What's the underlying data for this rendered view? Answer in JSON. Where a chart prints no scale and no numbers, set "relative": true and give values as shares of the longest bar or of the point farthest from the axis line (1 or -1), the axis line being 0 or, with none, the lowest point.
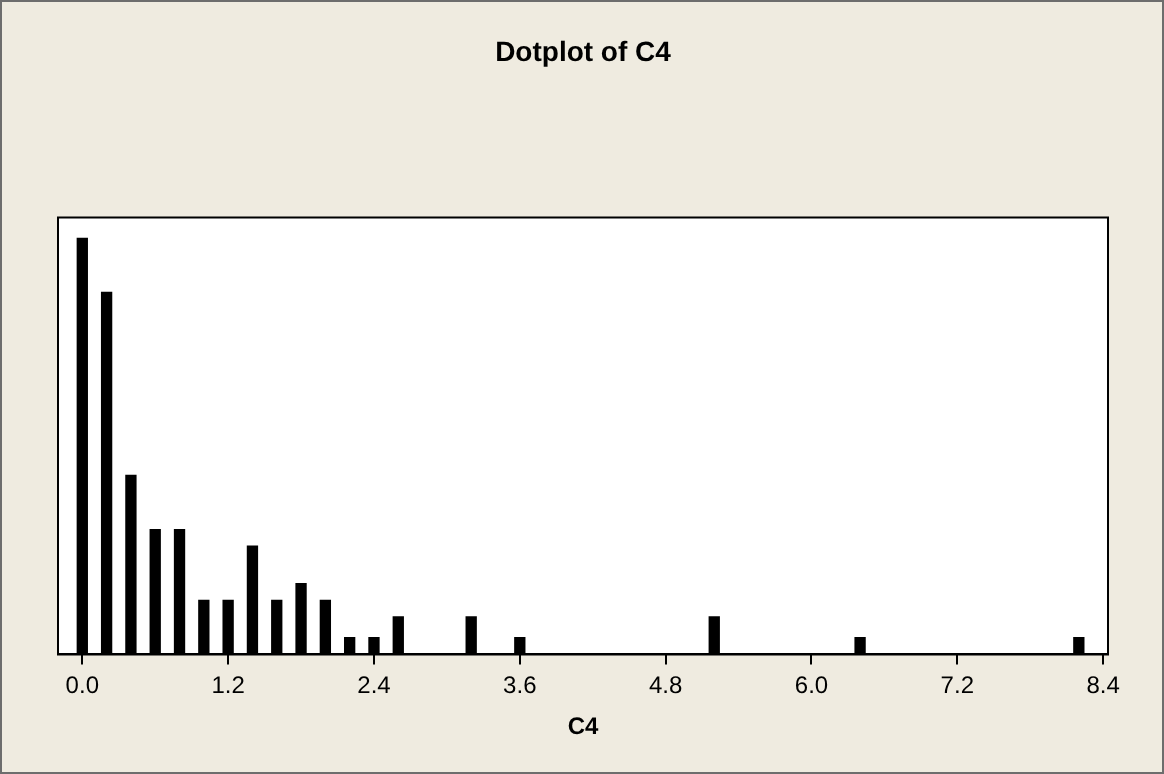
{
  "chart_data": {
    "type": "bar",
    "title": "Dotplot of C4",
    "xlabel": "C4",
    "relative": true,
    "grid": false,
    "legend": false,
    "tick_labels": "x",
    "xlim": [
      -0.2,
      8.44
    ],
    "xticks": [
      {
        "value": 0,
        "label": "0.0"
      },
      1.2,
      2.4,
      3.6,
      4.8,
      {
        "value": 6,
        "label": "6.0"
      },
      7.2,
      8.4
    ],
    "x": [
      0,
      0.2,
      0.4,
      0.6,
      0.8,
      1,
      1.2,
      1.4,
      1.6,
      1.8,
      2,
      2.2,
      2.4,
      2.6,
      3.2,
      3.6,
      5.2,
      6.4,
      8.2
    ],
    "values": [
      1,
      0.87,
      0.43,
      0.3,
      0.3,
      0.13,
      0.13,
      0.26,
      0.13,
      0.17,
      0.13,
      0.04,
      0.04,
      0.09,
      0.09,
      0.04,
      0.09,
      0.04,
      0.04
    ],
    "color": "#000000"
  }
}
